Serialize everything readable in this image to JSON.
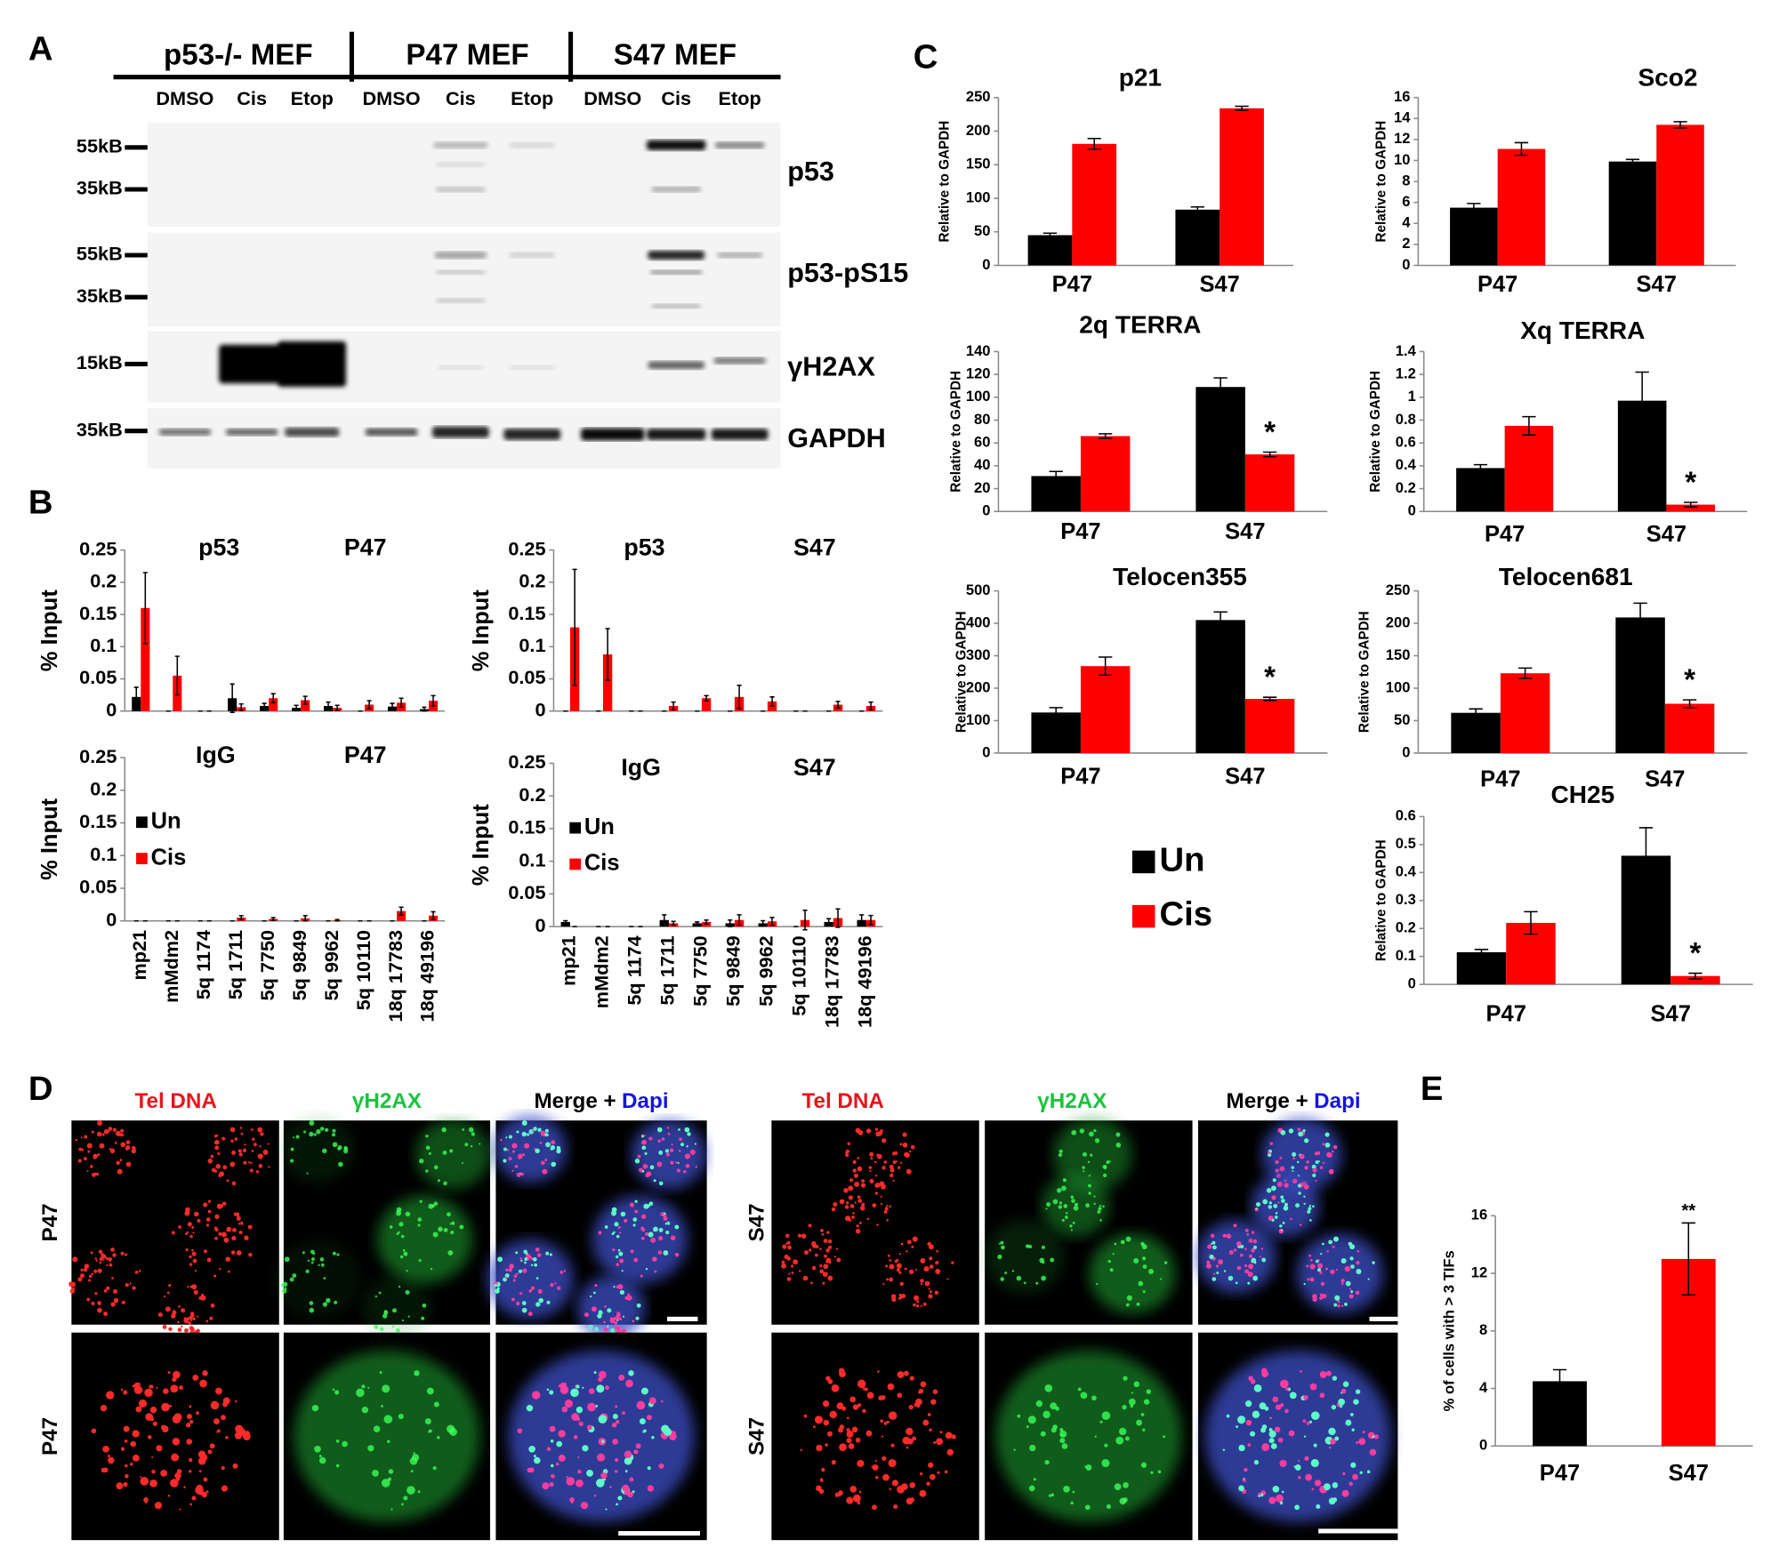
{
  "panel_labels": [
    "A",
    "B",
    "C",
    "D",
    "E"
  ],
  "blot": {
    "groups": [
      "p53-/- MEF",
      "P47 MEF",
      "S47 MEF"
    ],
    "lanes": [
      "DMSO",
      "Cis",
      "Etop",
      "DMSO",
      "Cis",
      "Etop",
      "DMSO",
      "Cis",
      "Etop"
    ],
    "rows": [
      {
        "label": "p53",
        "markers": [
          "55kB",
          "35kB"
        ]
      },
      {
        "label": "p53-pS15",
        "markers": [
          "55kB",
          "35kB"
        ]
      },
      {
        "label": "γH2AX",
        "markers": [
          "15kB"
        ]
      },
      {
        "label": "GAPDH",
        "markers": [
          "35kB"
        ]
      }
    ]
  },
  "chart_data": [
    {
      "type": "bar",
      "title": "p53",
      "subtitle": "P47",
      "y_label": "% Input",
      "ylim": [
        0,
        0.25
      ],
      "yticks": [
        0,
        0.05,
        0.1,
        0.15,
        0.2,
        0.25
      ],
      "series": [
        {
          "color": "#000000",
          "values": [
            0.022,
            0,
            0,
            0.02,
            0.008,
            0.005,
            0.008,
            0,
            0.007,
            0.003
          ],
          "errors": [
            0.015,
            0,
            0,
            0.022,
            0.004,
            0.004,
            0.006,
            0,
            0.005,
            0.003
          ]
        },
        {
          "color": "#ff0000",
          "values": [
            0.16,
            0.055,
            0,
            0.006,
            0.02,
            0.017,
            0.005,
            0.01,
            0.013,
            0.016
          ],
          "errors": [
            0.055,
            0.03,
            0,
            0.005,
            0.007,
            0.006,
            0.004,
            0.006,
            0.007,
            0.008
          ]
        }
      ]
    },
    {
      "type": "bar",
      "title": "p53",
      "subtitle": "S47",
      "y_label": "% Input",
      "ylim": [
        0,
        0.25
      ],
      "yticks": [
        0,
        0.05,
        0.1,
        0.15,
        0.2,
        0.25
      ],
      "series": [
        {
          "color": "#000000",
          "values": [
            0,
            0,
            0,
            0,
            0,
            0,
            0,
            0,
            0,
            0
          ],
          "errors": [
            0,
            0,
            0,
            0,
            0,
            0,
            0,
            0,
            0,
            0
          ]
        },
        {
          "color": "#ff0000",
          "values": [
            0.13,
            0.088,
            0,
            0.008,
            0.02,
            0.022,
            0.015,
            0,
            0.01,
            0.008
          ],
          "errors": [
            0.09,
            0.04,
            0,
            0.006,
            0.004,
            0.018,
            0.007,
            0,
            0.005,
            0.006
          ]
        }
      ]
    },
    {
      "type": "bar",
      "title": "IgG",
      "subtitle": "P47",
      "y_label": "% Input",
      "ylim": [
        0,
        0.25
      ],
      "yticks": [
        0,
        0.05,
        0.1,
        0.15,
        0.2,
        0.25
      ],
      "legend": "upper left",
      "categories": [
        "mp21",
        "mMdm2",
        "5q 1174",
        "5q 1711",
        "5q 7750",
        "5q 9849",
        "5q 9962",
        "5q 10110",
        "18q 17783",
        "18q 49196"
      ],
      "series": [
        {
          "name": "Un",
          "color": "#000000",
          "values": [
            0,
            0,
            0,
            0,
            0,
            0,
            0,
            0,
            0,
            0
          ],
          "errors": [
            0,
            0,
            0,
            0,
            0,
            0,
            0,
            0,
            0,
            0
          ]
        },
        {
          "name": "Cis",
          "color": "#ff0000",
          "values": [
            0,
            0,
            0,
            0.005,
            0.003,
            0.004,
            0.001,
            0,
            0.015,
            0.008
          ],
          "errors": [
            0,
            0,
            0,
            0.003,
            0.002,
            0.004,
            0.001,
            0,
            0.006,
            0.006
          ]
        }
      ]
    },
    {
      "type": "bar",
      "title": "IgG",
      "subtitle": "S47",
      "y_label": "% Input",
      "ylim": [
        0,
        0.25
      ],
      "yticks": [
        0,
        0.05,
        0.1,
        0.15,
        0.2,
        0.25
      ],
      "legend": "upper left",
      "categories": [
        "mp21",
        "mMdm2",
        "5q 1174",
        "5q 1711",
        "5q 7750",
        "5q 9849",
        "5q 9962",
        "5q 10110",
        "18q 17783",
        "18q 49196"
      ],
      "series": [
        {
          "name": "Un",
          "color": "#000000",
          "values": [
            0.007,
            0,
            0,
            0.01,
            0.005,
            0.005,
            0.005,
            0,
            0.007,
            0.01
          ],
          "errors": [
            0.002,
            0,
            0,
            0.008,
            0.002,
            0.005,
            0.004,
            0,
            0.005,
            0.008
          ]
        },
        {
          "name": "Cis",
          "color": "#ff0000",
          "values": [
            0,
            0,
            0,
            0.005,
            0.007,
            0.01,
            0.008,
            0.01,
            0.013,
            0.01
          ],
          "errors": [
            0,
            0,
            0,
            0.003,
            0.003,
            0.008,
            0.006,
            0.015,
            0.014,
            0.007
          ]
        }
      ]
    },
    {
      "type": "bar",
      "title": "p21",
      "y_label": "Relative to GAPDH",
      "ylim": [
        0,
        250
      ],
      "yticks": [
        0,
        50,
        100,
        150,
        200,
        250
      ],
      "categories": [
        "P47",
        "S47"
      ],
      "series": [
        {
          "color": "#000000",
          "values": [
            45,
            83
          ],
          "errors": [
            3,
            4
          ]
        },
        {
          "color": "#ff0000",
          "values": [
            181,
            234
          ],
          "errors": [
            8,
            3
          ]
        }
      ]
    },
    {
      "type": "bar",
      "title": "Sco2",
      "y_label": "Relative to GAPDH",
      "ylim": [
        0,
        16
      ],
      "yticks": [
        0,
        2,
        4,
        6,
        8,
        10,
        12,
        14,
        16
      ],
      "categories": [
        "P47",
        "S47"
      ],
      "series": [
        {
          "color": "#000000",
          "values": [
            5.5,
            9.9
          ],
          "errors": [
            0.4,
            0.2
          ]
        },
        {
          "color": "#ff0000",
          "values": [
            11.1,
            13.4
          ],
          "errors": [
            0.6,
            0.3
          ]
        }
      ]
    },
    {
      "type": "bar",
      "title": "2q TERRA",
      "y_label": "Relative to GAPDH",
      "ylim": [
        0,
        140
      ],
      "yticks": [
        0,
        20,
        40,
        60,
        80,
        100,
        120,
        140
      ],
      "categories": [
        "P47",
        "S47"
      ],
      "annotation": "*",
      "series": [
        {
          "color": "#000000",
          "values": [
            31,
            109
          ],
          "errors": [
            4,
            8
          ]
        },
        {
          "color": "#ff0000",
          "values": [
            66,
            50
          ],
          "errors": [
            2,
            2
          ]
        }
      ]
    },
    {
      "type": "bar",
      "title": "Xq TERRA",
      "y_label": "Relative to GAPDH",
      "ylim": [
        0,
        1.4
      ],
      "yticks": [
        0,
        0.2,
        0.4,
        0.6,
        0.8,
        1,
        1.2,
        1.4
      ],
      "categories": [
        "P47",
        "S47"
      ],
      "annotation": "*",
      "series": [
        {
          "color": "#000000",
          "values": [
            0.38,
            0.97
          ],
          "errors": [
            0.03,
            0.25
          ]
        },
        {
          "color": "#ff0000",
          "values": [
            0.75,
            0.06
          ],
          "errors": [
            0.08,
            0.02
          ]
        }
      ]
    },
    {
      "type": "bar",
      "title": "Telocen355",
      "y_label": "Relative to GAPDH",
      "ylim": [
        0,
        500
      ],
      "yticks": [
        0,
        100,
        200,
        300,
        400,
        500
      ],
      "categories": [
        "P47",
        "S47"
      ],
      "annotation": "*",
      "legend": "below",
      "series": [
        {
          "name": "Un",
          "color": "#000000",
          "values": [
            125,
            410
          ],
          "errors": [
            15,
            25
          ]
        },
        {
          "name": "Cis",
          "color": "#ff0000",
          "values": [
            268,
            167
          ],
          "errors": [
            28,
            5
          ]
        }
      ]
    },
    {
      "type": "bar",
      "title": "Telocen681",
      "y_label": "Relative to GAPDH",
      "ylim": [
        0,
        250
      ],
      "yticks": [
        0,
        50,
        100,
        150,
        200,
        250
      ],
      "categories": [
        "P47",
        "S47"
      ],
      "annotation": "*",
      "series": [
        {
          "color": "#000000",
          "values": [
            62,
            209
          ],
          "errors": [
            6,
            22
          ]
        },
        {
          "color": "#ff0000",
          "values": [
            123,
            76
          ],
          "errors": [
            8,
            6
          ]
        }
      ]
    },
    {
      "type": "bar",
      "title": "CH25",
      "y_label": "Relative to GAPDH",
      "ylim": [
        0,
        0.6
      ],
      "yticks": [
        0,
        0.1,
        0.2,
        0.3,
        0.4,
        0.5,
        0.6
      ],
      "categories": [
        "P47",
        "S47"
      ],
      "annotation": "*",
      "series": [
        {
          "color": "#000000",
          "values": [
            0.115,
            0.46
          ],
          "errors": [
            0.01,
            0.1
          ]
        },
        {
          "color": "#ff0000",
          "values": [
            0.22,
            0.03
          ],
          "errors": [
            0.04,
            0.01
          ]
        }
      ]
    },
    {
      "type": "bar",
      "y_label": "% of cells with > 3 TIFs",
      "ylim": [
        0,
        16
      ],
      "yticks": [
        0,
        4,
        8,
        12,
        16
      ],
      "categories": [
        "P47",
        "S47"
      ],
      "annotation": "**",
      "values": [
        4.5,
        13
      ],
      "errors": [
        0.8,
        2.5
      ],
      "colors": [
        "#000000",
        "#ff0000"
      ]
    }
  ],
  "microscopy": [
    {
      "columns": [
        [
          "Tel DNA"
        ],
        [
          "γH2AX"
        ],
        [
          "Merge +",
          "Dapi"
        ]
      ],
      "rows": [
        "P47",
        "P47"
      ]
    },
    {
      "columns": [
        [
          "Tel DNA"
        ],
        [
          "γH2AX"
        ],
        [
          "Merge +",
          "Dapi"
        ]
      ],
      "rows": [
        "S47",
        "S47"
      ]
    }
  ]
}
